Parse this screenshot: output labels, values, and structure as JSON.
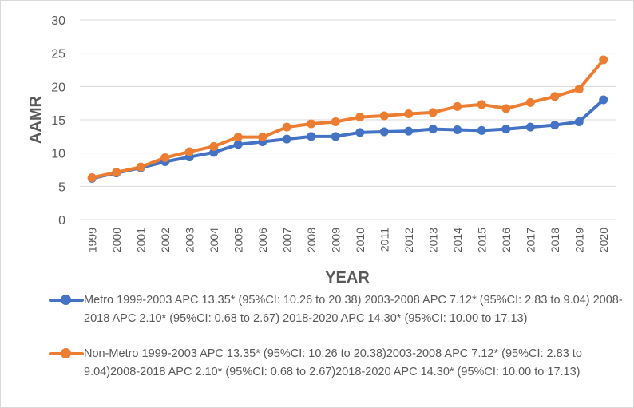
{
  "chart_data": {
    "type": "line",
    "title": "",
    "xlabel": "YEAR",
    "ylabel": "AAMR",
    "ylim": [
      0,
      30
    ],
    "yticks": [
      "0",
      "5",
      "10",
      "15",
      "20",
      "25",
      "30"
    ],
    "categories": [
      "1999",
      "2000",
      "2001",
      "2002",
      "2003",
      "2004",
      "2005",
      "2006",
      "2007",
      "2008",
      "2009",
      "2010",
      "2011",
      "2012",
      "2013",
      "2014",
      "2015",
      "2016",
      "2017",
      "2018",
      "2019",
      "2020"
    ],
    "grid": true,
    "legend_position": "bottom",
    "series": [
      {
        "name": "Metro 1999-2003 APC 13.35* (95%CI: 10.26 to 20.38) 2003-2008 APC 7.12* (95%CI: 2.83 to 9.04) 2008-2018 APC 2.10* (95%CI: 0.68 to 2.67) 2018-2020 APC 14.30* (95%CI: 10.00 to 17.13)",
        "color": "#4472c4",
        "values": [
          6.2,
          7.0,
          7.8,
          8.7,
          9.4,
          10.1,
          11.3,
          11.7,
          12.1,
          12.5,
          12.5,
          13.1,
          13.2,
          13.3,
          13.6,
          13.5,
          13.4,
          13.6,
          13.9,
          14.2,
          14.7,
          18.0
        ]
      },
      {
        "name": "Non-Metro 1999-2003 APC 13.35* (95%CI: 10.26 to 20.38)2003-2008 APC 7.12* (95%CI: 2.83 to 9.04)2008-2018 APC 2.10* (95%CI: 0.68 to 2.67)2018-2020 APC 14.30* (95%CI: 10.00 to 17.13)",
        "color": "#ed7d31",
        "values": [
          6.3,
          7.1,
          7.9,
          9.3,
          10.2,
          11.0,
          12.4,
          12.4,
          13.9,
          14.4,
          14.7,
          15.4,
          15.6,
          15.9,
          16.1,
          17.0,
          17.3,
          16.7,
          17.6,
          18.5,
          19.6,
          24.0
        ]
      }
    ]
  }
}
